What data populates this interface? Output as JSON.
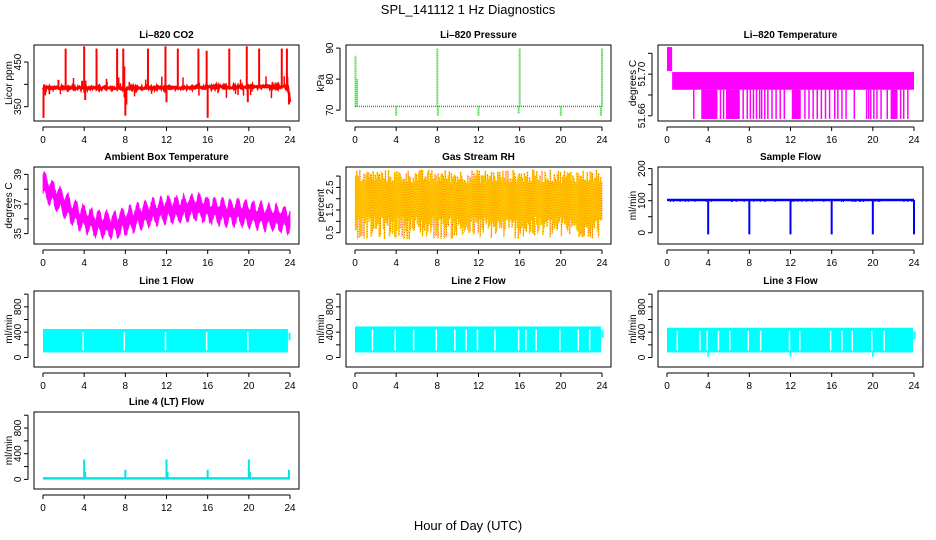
{
  "figure": {
    "title": "SPL_141112  1 Hz Diagnostics",
    "xlabel": "Hour of Day (UTC)"
  },
  "chart_data": [
    {
      "id": "co2",
      "type": "line",
      "title": "Li-820 CO2",
      "ylabel": "Licor ppm",
      "color": "#ff0000",
      "xlim": [
        0,
        24
      ],
      "xticks": [
        0,
        4,
        8,
        12,
        16,
        20,
        24
      ],
      "ylim": [
        318,
        488
      ],
      "yticks": [
        350,
        400,
        450
      ],
      "ytick_labels": [
        "350",
        "",
        "450"
      ],
      "baseline": [
        [
          0,
          392
        ],
        [
          4,
          392
        ],
        [
          8,
          391
        ],
        [
          12,
          392
        ],
        [
          16,
          393
        ],
        [
          20,
          395
        ],
        [
          23.8,
          394
        ],
        [
          24,
          360
        ]
      ],
      "spikes": [
        {
          "x": 0.05,
          "y": 325
        },
        {
          "x": 0.1,
          "y": 400
        },
        {
          "x": 1.5,
          "y": 410
        },
        {
          "x": 2.2,
          "y": 480
        },
        {
          "x": 3.8,
          "y": 408
        },
        {
          "x": 4.0,
          "y": 485
        },
        {
          "x": 4.1,
          "y": 365
        },
        {
          "x": 5.2,
          "y": 480
        },
        {
          "x": 6.2,
          "y": 405
        },
        {
          "x": 7.2,
          "y": 480
        },
        {
          "x": 7.8,
          "y": 480
        },
        {
          "x": 7.9,
          "y": 440
        },
        {
          "x": 8.0,
          "y": 330
        },
        {
          "x": 8.1,
          "y": 355
        },
        {
          "x": 10.2,
          "y": 480
        },
        {
          "x": 11.9,
          "y": 485
        },
        {
          "x": 12.0,
          "y": 360
        },
        {
          "x": 13.1,
          "y": 480
        },
        {
          "x": 15.1,
          "y": 480
        },
        {
          "x": 15.9,
          "y": 475
        },
        {
          "x": 16.0,
          "y": 325
        },
        {
          "x": 18.1,
          "y": 480
        },
        {
          "x": 19.8,
          "y": 485
        },
        {
          "x": 19.9,
          "y": 360
        },
        {
          "x": 21.0,
          "y": 480
        },
        {
          "x": 22.3,
          "y": 405
        },
        {
          "x": 23.2,
          "y": 480
        },
        {
          "x": 23.7,
          "y": 480
        },
        {
          "x": 23.9,
          "y": 355
        }
      ]
    },
    {
      "id": "pressure",
      "type": "line",
      "title": "Li-820 Pressure",
      "ylabel": "kPa",
      "color": "#00cc00",
      "xlim": [
        0,
        24
      ],
      "xticks": [
        0,
        4,
        8,
        12,
        16,
        20,
        24
      ],
      "ylim": [
        66.5,
        91
      ],
      "yticks": [
        70,
        80,
        90
      ],
      "ytick_labels": [
        "70",
        "80",
        "90"
      ],
      "baseline": [
        [
          0,
          71.2
        ],
        [
          24,
          71.2
        ]
      ],
      "spikes": [
        {
          "x": 0.05,
          "y": 87.5
        },
        {
          "x": 0.2,
          "y": 80
        },
        {
          "x": 4.0,
          "y": 68
        },
        {
          "x": 8.0,
          "y": 90
        },
        {
          "x": 8.05,
          "y": 68
        },
        {
          "x": 12.0,
          "y": 68
        },
        {
          "x": 15.9,
          "y": 69
        },
        {
          "x": 16.0,
          "y": 90
        },
        {
          "x": 20.0,
          "y": 68
        },
        {
          "x": 23.9,
          "y": 68
        },
        {
          "x": 24.0,
          "y": 90
        }
      ]
    },
    {
      "id": "li820-temp",
      "type": "area",
      "title": "Li-820 Temperature",
      "ylabel": "degrees C",
      "color": "#ff00ff",
      "xlim": [
        0,
        24
      ],
      "xticks": [
        0,
        4,
        8,
        12,
        16,
        20,
        24
      ],
      "ylim": [
        51.655,
        51.728
      ],
      "yticks": [
        51.66,
        51.68,
        51.7,
        51.72
      ],
      "ytick_labels": [
        "51.66",
        "",
        "51.70",
        ""
      ],
      "band_upper": 51.702,
      "band_lower": 51.685,
      "floor": 51.657,
      "startup": {
        "x0": 0,
        "x1": 0.5,
        "upper": 51.726,
        "lower": 51.703
      },
      "dropouts": [
        2.6,
        3.4,
        3.5,
        3.6,
        3.7,
        3.8,
        3.9,
        4.0,
        4.2,
        4.4,
        4.6,
        4.8,
        5.2,
        5.5,
        5.8,
        6.0,
        6.2,
        6.4,
        6.6,
        6.8,
        7.0,
        7.4,
        7.8,
        8.1,
        8.4,
        8.7,
        9.0,
        9.2,
        9.5,
        9.8,
        10.2,
        10.6,
        11.0,
        11.4,
        12.2,
        12.4,
        12.6,
        12.8,
        13.4,
        13.8,
        14.2,
        14.6,
        15.0,
        15.4,
        15.8,
        16.3,
        16.6,
        17.0,
        17.4,
        18.2,
        19.4,
        19.6,
        19.8,
        20.1,
        20.4,
        20.8,
        21.4,
        21.8,
        22.0,
        22.2,
        22.7,
        23.0,
        23.4
      ]
    },
    {
      "id": "ambient-temp",
      "type": "area",
      "title": "Ambient Box Temperature",
      "ylabel": "degrees C",
      "color": "#ff00ff",
      "xlim": [
        0,
        24
      ],
      "xticks": [
        0,
        4,
        8,
        12,
        16,
        20,
        24
      ],
      "ylim": [
        34.3,
        39.5
      ],
      "yticks": [
        35,
        36,
        37,
        38,
        39
      ],
      "ytick_labels": [
        "35",
        "",
        "37",
        "",
        "39"
      ],
      "trend": [
        [
          0,
          38.3
        ],
        [
          1,
          37.6
        ],
        [
          2,
          37.0
        ],
        [
          3,
          36.4
        ],
        [
          4,
          36.0
        ],
        [
          5,
          35.7
        ],
        [
          6,
          35.6
        ],
        [
          7,
          35.6
        ],
        [
          8,
          35.8
        ],
        [
          9,
          36.1
        ],
        [
          10,
          36.3
        ],
        [
          11,
          36.5
        ],
        [
          12,
          36.6
        ],
        [
          13,
          36.6
        ],
        [
          14,
          36.7
        ],
        [
          15,
          36.8
        ],
        [
          16,
          36.6
        ],
        [
          17,
          36.5
        ],
        [
          18,
          36.4
        ],
        [
          19,
          36.4
        ],
        [
          20,
          36.3
        ],
        [
          21,
          36.2
        ],
        [
          22,
          36.1
        ],
        [
          23,
          36.0
        ],
        [
          24,
          35.9
        ]
      ],
      "oscillation_amplitude": 0.6,
      "oscillation_period_hours": 0.75
    },
    {
      "id": "rh",
      "type": "area",
      "title": "Gas Stream RH",
      "ylabel": "percent",
      "color": "#ffcc00",
      "color2": "#ff0000",
      "xlim": [
        0,
        24
      ],
      "xticks": [
        0,
        4,
        8,
        12,
        16,
        20,
        24
      ],
      "ylim": [
        0.0,
        3.4
      ],
      "yticks": [
        0.5,
        1.0,
        1.5,
        2.0,
        2.5,
        3.0
      ],
      "ytick_labels": [
        "0.5",
        "",
        "1.5",
        "",
        "2.5",
        ""
      ],
      "mean": 1.9,
      "upper_range": [
        2.7,
        3.3
      ],
      "lower_range": [
        0.2,
        1.2
      ]
    },
    {
      "id": "sample-flow",
      "type": "line",
      "title": "Sample Flow",
      "ylabel": "ml/min",
      "color": "#0000ff",
      "xlim": [
        0,
        24
      ],
      "xticks": [
        0,
        4,
        8,
        12,
        16,
        20,
        24
      ],
      "ylim": [
        -35,
        205
      ],
      "yticks": [
        0,
        50,
        100,
        150,
        200
      ],
      "ytick_labels": [
        "0",
        "",
        "100",
        "",
        "200"
      ],
      "baseline": [
        [
          0,
          102
        ],
        [
          24,
          102
        ]
      ],
      "spikes": [
        {
          "x": 4.0,
          "y": -5
        },
        {
          "x": 8.0,
          "y": -5
        },
        {
          "x": 12.0,
          "y": -5
        },
        {
          "x": 16.0,
          "y": -5
        },
        {
          "x": 20.0,
          "y": -5
        },
        {
          "x": 24.0,
          "y": -5
        }
      ]
    },
    {
      "id": "line1-flow",
      "type": "area",
      "title": "Line 1 Flow",
      "ylabel": "ml/min",
      "color": "#00ffff",
      "xlim": [
        0,
        24
      ],
      "xticks": [
        0,
        4,
        8,
        12,
        16,
        20,
        24
      ],
      "ylim": [
        -150,
        1050
      ],
      "yticks": [
        0,
        200,
        400,
        600,
        800,
        1000
      ],
      "ytick_labels": [
        "0",
        "",
        "400",
        "",
        "800",
        ""
      ],
      "band_upper": 450,
      "band_lower": 80,
      "band_end": 23.8,
      "gaps": [
        3.9,
        7.9,
        11.9,
        15.9,
        19.9
      ],
      "dips": []
    },
    {
      "id": "line2-flow",
      "type": "area",
      "title": "Line 2 Flow",
      "ylabel": "ml/min",
      "color": "#00ffff",
      "xlim": [
        0,
        24
      ],
      "xticks": [
        0,
        4,
        8,
        12,
        16,
        20,
        24
      ],
      "ylim": [
        -150,
        1050
      ],
      "yticks": [
        0,
        200,
        400,
        600,
        800,
        1000
      ],
      "ytick_labels": [
        "0",
        "",
        "400",
        "",
        "800",
        ""
      ],
      "band_upper": 490,
      "band_lower": 80,
      "band_end": 23.9,
      "gaps": [
        1.7,
        3.9,
        5.7,
        7.9,
        9.7,
        10.8,
        11.9,
        13.6,
        15.9,
        16.6,
        17.6,
        19.9,
        21.7,
        22.8
      ],
      "dips": []
    },
    {
      "id": "line3-flow",
      "type": "area",
      "title": "Line 3 Flow",
      "ylabel": "ml/min",
      "color": "#00ffff",
      "xlim": [
        0,
        24
      ],
      "xticks": [
        0,
        4,
        8,
        12,
        16,
        20,
        24
      ],
      "ylim": [
        -150,
        1050
      ],
      "yticks": [
        0,
        200,
        400,
        600,
        800,
        1000
      ],
      "ytick_labels": [
        "0",
        "",
        "400",
        "",
        "800",
        ""
      ],
      "band_upper": 470,
      "band_lower": 80,
      "band_end": 23.9,
      "gaps": [
        1.0,
        3.2,
        3.9,
        5.0,
        6.1,
        7.9,
        9.1,
        11.9,
        12.9,
        15.9,
        17.0,
        18.0,
        19.9,
        21.1
      ],
      "dips": [
        4.0,
        12.0,
        20.0
      ]
    },
    {
      "id": "line4-flow",
      "type": "line",
      "title": "Line 4 (LT) Flow",
      "ylabel": "ml/min",
      "color": "#00e5e5",
      "xlim": [
        0,
        24
      ],
      "xticks": [
        0,
        4,
        8,
        12,
        16,
        20,
        24
      ],
      "ylim": [
        -150,
        1050
      ],
      "yticks": [
        0,
        200,
        400,
        600,
        800,
        1000
      ],
      "ytick_labels": [
        "0",
        "",
        "400",
        "",
        "800",
        ""
      ],
      "baseline": [
        [
          0,
          15
        ],
        [
          24,
          15
        ]
      ],
      "spikes": [
        {
          "x": 4.0,
          "y": 310
        },
        {
          "x": 4.1,
          "y": 120
        },
        {
          "x": 8.0,
          "y": 150
        },
        {
          "x": 12.0,
          "y": 310
        },
        {
          "x": 12.1,
          "y": 120
        },
        {
          "x": 16.0,
          "y": 150
        },
        {
          "x": 20.0,
          "y": 310
        },
        {
          "x": 20.1,
          "y": 120
        },
        {
          "x": 23.9,
          "y": 150
        }
      ]
    }
  ]
}
